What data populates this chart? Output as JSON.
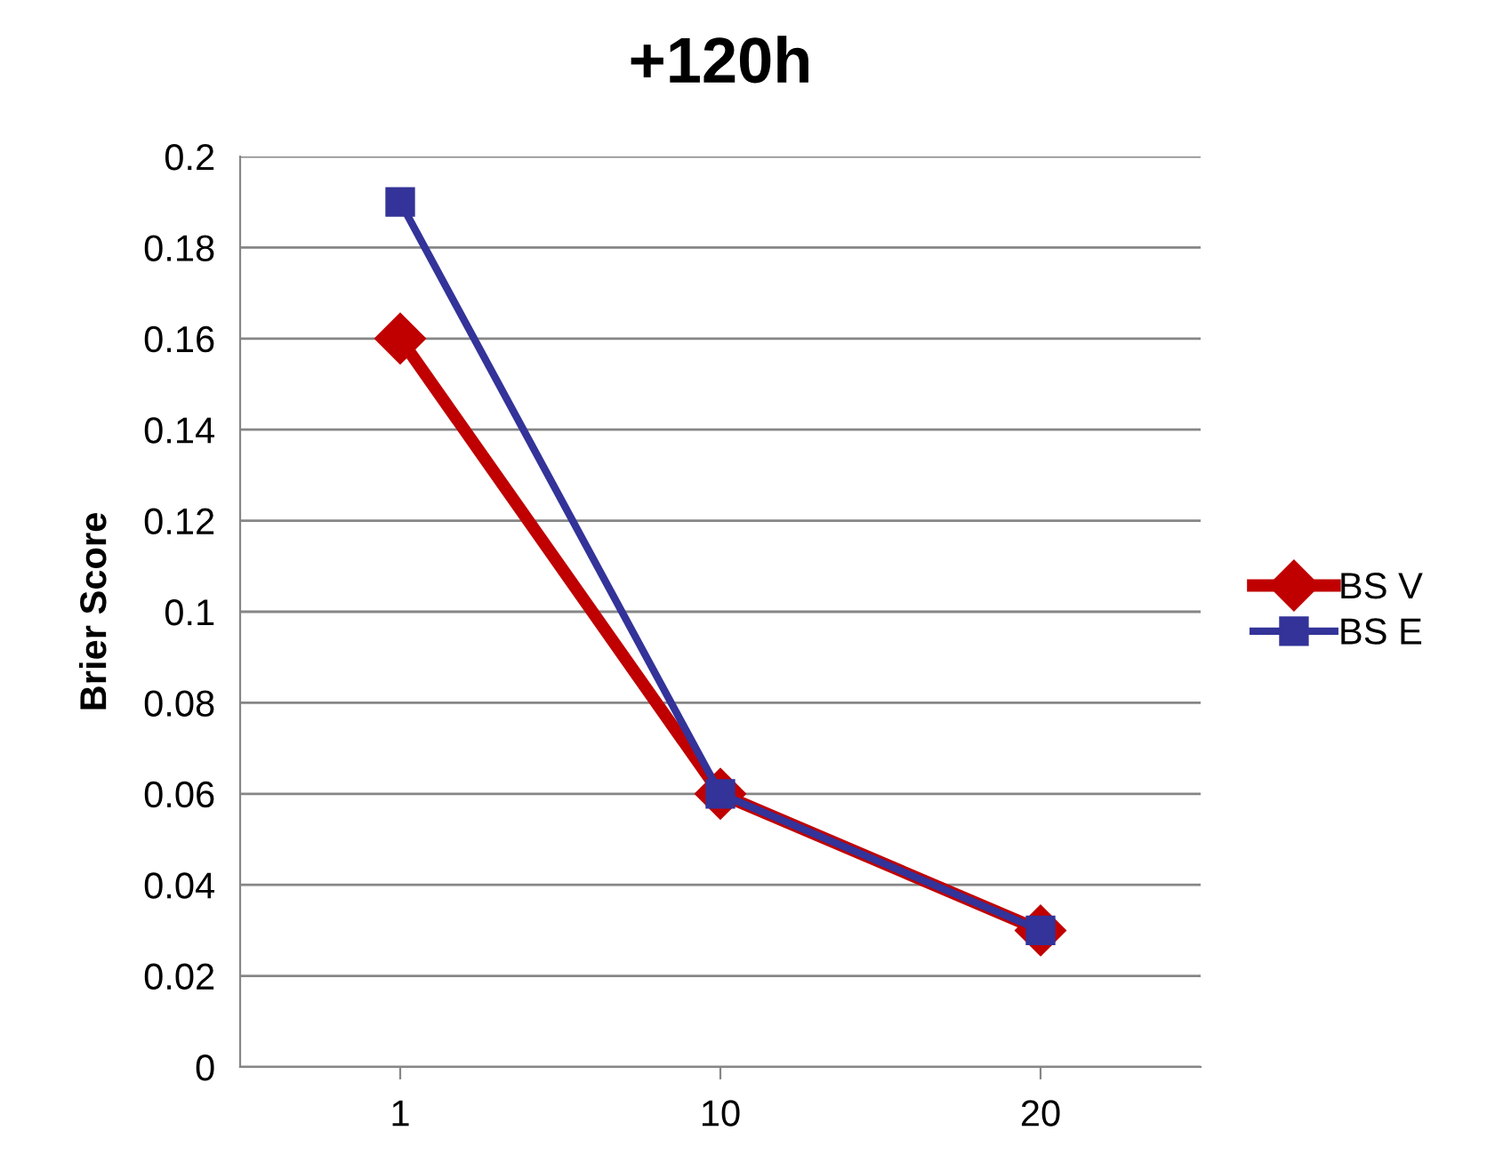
{
  "chart_data": {
    "type": "line",
    "title": "+120h",
    "ylabel": "Brier Score",
    "categories": [
      "1",
      "10",
      "20"
    ],
    "series": [
      {
        "name": "BS V",
        "color": "#c00000",
        "values": [
          0.16,
          0.06,
          0.03
        ],
        "marker": "diamond"
      },
      {
        "name": "BS E",
        "color": "#333399",
        "values": [
          0.19,
          0.06,
          0.03
        ],
        "marker": "square"
      }
    ],
    "ylim": [
      0,
      0.2
    ],
    "yticks": [
      0,
      0.02,
      0.04,
      0.06,
      0.08,
      0.1,
      0.12,
      0.14,
      0.16,
      0.18,
      0.2
    ],
    "grid": "y",
    "legend": "right",
    "line_style": "solid"
  }
}
